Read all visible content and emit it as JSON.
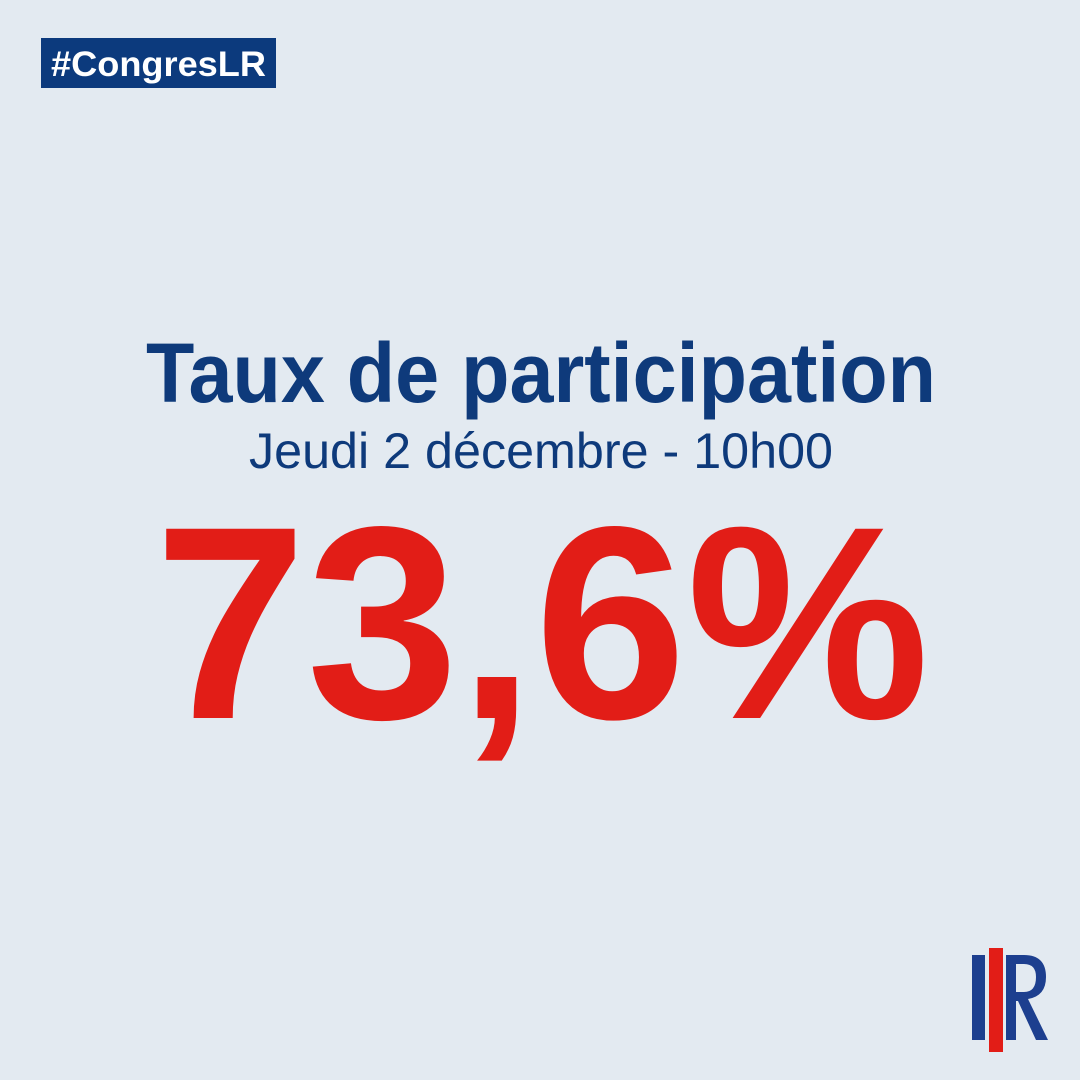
{
  "hashtag": "#CongresLR",
  "title": "Taux de participation",
  "subtitle": "Jeudi 2 décembre - 10h00",
  "headline": "73,6%"
}
